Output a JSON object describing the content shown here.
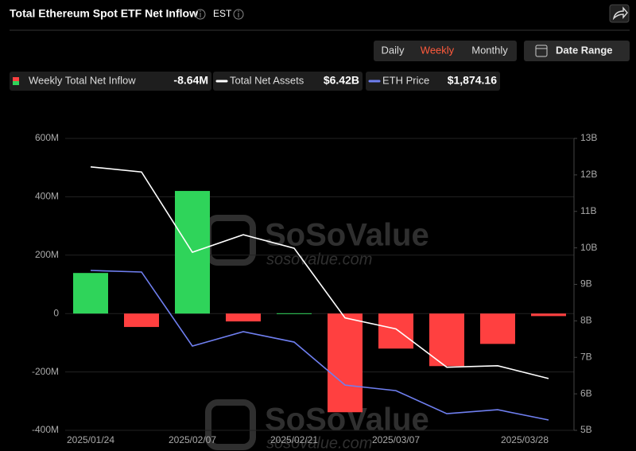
{
  "chart_data": {
    "type": "bar",
    "title": "Total Ethereum Spot ETF Net Inflow",
    "timezone": "EST",
    "controls": {
      "intervals": [
        "Daily",
        "Weekly",
        "Monthly"
      ],
      "active": 1,
      "date_range": "Date Range"
    },
    "watermark": {
      "brand": "SoSoValue",
      "url": "sosovalue.com"
    },
    "categories": [
      "2025/01/24",
      null,
      "2025/02/07",
      null,
      "2025/02/21",
      null,
      "2025/03/07",
      null,
      null,
      "2025/03/28"
    ],
    "series": [
      {
        "name": "Weekly Total Net Inflow",
        "type": "bar",
        "positive_color": "#2fd45a",
        "negative_color": "#ff4040",
        "values": [
          139,
          -46,
          420,
          -27,
          1,
          -338,
          -120,
          -180,
          -104,
          -8.64
        ],
        "legend_value": "-8.64M"
      },
      {
        "name": "Total Net Assets",
        "type": "line",
        "axis": "y2",
        "color": "#ffffff",
        "values": [
          12.22,
          12.08,
          9.88,
          10.36,
          9.99,
          8.08,
          7.78,
          6.73,
          6.77,
          6.42
        ],
        "legend_value": "$6.42B"
      },
      {
        "name": "ETH Price",
        "type": "line",
        "axis": "hidden",
        "color": "#6f7ff0",
        "values": [
          3300,
          3285,
          2579,
          2716,
          2617,
          2207,
          2154,
          1934,
          1972,
          1874.16
        ],
        "legend_value": "$1,874.16"
      }
    ],
    "ylim": [
      -400,
      600
    ],
    "yticks": [
      {
        "value": -400,
        "label": "-400M"
      },
      {
        "value": -200,
        "label": "-200M"
      },
      0,
      {
        "value": 200,
        "label": "200M"
      },
      {
        "value": 400,
        "label": "400M"
      },
      {
        "value": 600,
        "label": "600M"
      }
    ],
    "y2lim": [
      5,
      13
    ],
    "y2ticks": [
      {
        "value": 5,
        "label": "5B"
      },
      {
        "value": 6,
        "label": "6B"
      },
      {
        "value": 7,
        "label": "7B"
      },
      {
        "value": 8,
        "label": "8B"
      },
      {
        "value": 9,
        "label": "9B"
      },
      {
        "value": 10,
        "label": "10B"
      },
      {
        "value": 11,
        "label": "11B"
      },
      {
        "value": 12,
        "label": "12B"
      },
      {
        "value": 13,
        "label": "13B"
      }
    ],
    "grid": true
  }
}
